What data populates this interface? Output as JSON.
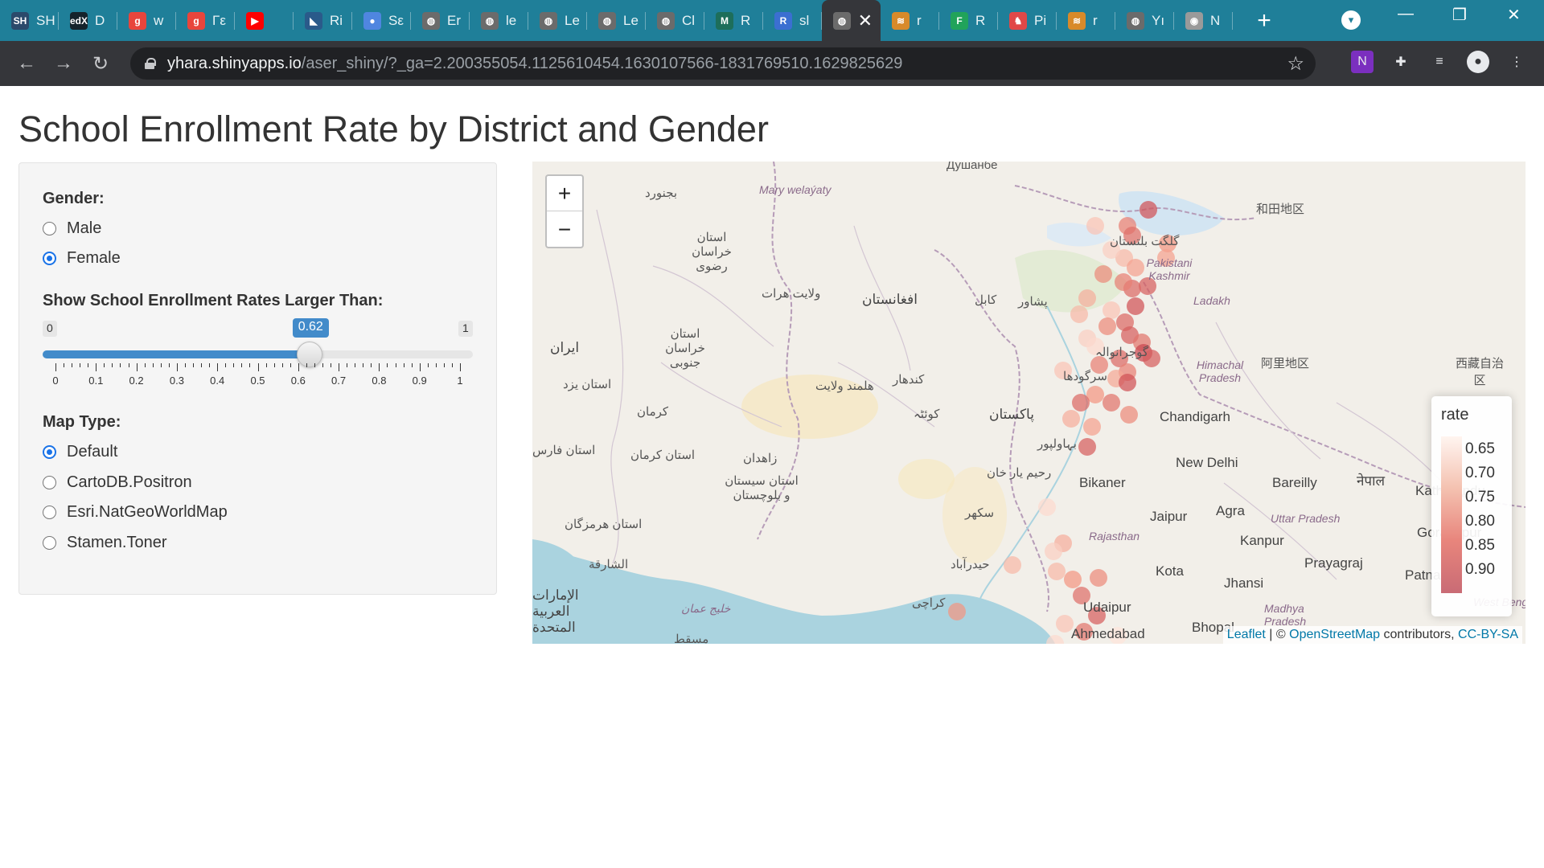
{
  "browser": {
    "tabs": [
      {
        "label": "SH",
        "icon": "shinyapps-icon",
        "color": "#2b4a6b"
      },
      {
        "label": "D",
        "icon": "edx-icon",
        "color": "#15232b"
      },
      {
        "label": "w",
        "icon": "google-g-icon",
        "color": "#e8453c"
      },
      {
        "label": "Γε",
        "icon": "google-g-icon",
        "color": "#e8453c"
      },
      {
        "label": "",
        "icon": "youtube-icon",
        "color": "#ff0000"
      },
      {
        "label": "Ri",
        "icon": "rstudio-icon",
        "color": "#2a5a8a"
      },
      {
        "label": "Sε",
        "icon": "bubble-icon",
        "color": "#4f86e0"
      },
      {
        "label": "Er",
        "icon": "globe-icon",
        "color": "#6b6b6b"
      },
      {
        "label": "le",
        "icon": "globe-icon",
        "color": "#6b6b6b"
      },
      {
        "label": "Le",
        "icon": "globe-icon",
        "color": "#6b6b6b"
      },
      {
        "label": "Le",
        "icon": "globe-icon",
        "color": "#6b6b6b"
      },
      {
        "label": "Cl",
        "icon": "globe-icon",
        "color": "#6b6b6b"
      },
      {
        "label": "R",
        "icon": "m-icon",
        "color": "#1d6e5a"
      },
      {
        "label": "sl",
        "icon": "r-icon",
        "color": "#3b6fd1"
      },
      {
        "label": "",
        "icon": "globe-icon",
        "color": "#6b6b6b"
      },
      {
        "label": "r",
        "icon": "stack-icon",
        "color": "#d88a2a"
      },
      {
        "label": "R",
        "icon": "f-icon",
        "color": "#21a35a"
      },
      {
        "label": "Pi",
        "icon": "unicorn-icon",
        "color": "#e04848"
      },
      {
        "label": "r",
        "icon": "stack-icon",
        "color": "#d88a2a"
      },
      {
        "label": "Yı",
        "icon": "globe-icon",
        "color": "#6b6b6b"
      },
      {
        "label": "N",
        "icon": "chrome-icon",
        "color": "#9a9a9a"
      }
    ],
    "new_tab_label": "+",
    "url_host": "yhara.shinyapps.io",
    "url_path": "/aser_shiny/?_ga=2.200355054.1125610454.1630107566-1831769510.1629825629"
  },
  "page": {
    "title": "School Enrollment Rate by District and Gender"
  },
  "controls": {
    "gender_label": "Gender:",
    "gender_options": [
      "Male",
      "Female"
    ],
    "gender_selected": "Female",
    "slider_label": "Show School Enrollment Rates Larger Than:",
    "slider_min": "0",
    "slider_max": "1",
    "slider_value": "0.62",
    "slider_value_num": 0.62,
    "slider_ticks": [
      "0",
      "0.1",
      "0.2",
      "0.3",
      "0.4",
      "0.5",
      "0.6",
      "0.7",
      "0.8",
      "0.9",
      "1"
    ],
    "maptype_label": "Map Type:",
    "maptype_options": [
      "Default",
      "CartoDB.Positron",
      "Esri.NatGeoWorldMap",
      "Stamen.Toner"
    ],
    "maptype_selected": "Default"
  },
  "map": {
    "zoom_in": "+",
    "zoom_out": "−",
    "legend_title": "rate",
    "legend_labels": [
      "0.65",
      "0.70",
      "0.75",
      "0.80",
      "0.85",
      "0.90"
    ],
    "attribution_leaflet": "Leaflet",
    "attribution_sep": " | © ",
    "attribution_osm": "OpenStreetMap",
    "attribution_mid": " contributors, ",
    "attribution_license": "CC-BY-SA",
    "place_labels": {
      "dushanbe": "Душанбе",
      "bojnurd": "بجنورد",
      "mary": "Mary welaýaty",
      "hotan": "和田地区",
      "khorasan_razavi": "استان خراسان رضوی",
      "gilgit": "گلگت بلتستان",
      "pakistani_kashmir": "Pakistani Kashmir",
      "herat": "ولایت هرات",
      "afghanistan": "افغانستان",
      "kabul": "کابل",
      "peshawar": "پشاور",
      "ladakh": "Ladakh",
      "iran": "ایران",
      "south_khorasan": "استان خراسان جنوبی",
      "gujranwala": "گوجرانوالہ",
      "ngari": "阿里地区",
      "xizang": "西藏自治区",
      "yazd": "استان یزد",
      "helmand": "هلمند ولایت",
      "kandahar": "کندهار",
      "sargodha": "سرگودھا",
      "himachal": "Himachal Pradesh",
      "kerman": "کرمان",
      "quetta": "کوئٹہ",
      "pakistan": "پاکستان",
      "chandigarh": "Chandigarh",
      "fars": "استان فارس",
      "kerman_prov": "استان کرمان",
      "zahedan": "زاهدان",
      "bahawalpur": "بہاولپور",
      "new_delhi": "New Delhi",
      "rahim_yar_khan": "رحیم یار خان",
      "bikaner": "Bikaner",
      "bareilly": "Bareilly",
      "nepal": "नेपाल",
      "kathmandu": "Kathmandu",
      "sistan": "استان سیستان و بلوچستان",
      "sukkur": "سکھر",
      "jaipur": "Jaipur",
      "agra": "Agra",
      "uttar_pradesh": "Uttar Pradesh",
      "gorakhpur": "Gorakhpur",
      "hormozgan": "استان هرمزگان",
      "rajasthan": "Rajasthan",
      "kanpur": "Kanpur",
      "sharjah": "الشارقة",
      "hyderabad": "حیدرآباد",
      "kota": "Kota",
      "prayagraj": "Prayagraj",
      "patna": "Patna",
      "uae": "الإمارات العربية المتحدة",
      "jhansi": "Jhansi",
      "karachi": "کراچی",
      "udaipur": "Udaipur",
      "oman_gulf": "خليج عمان",
      "madhya": "Madhya Pradesh",
      "muscat": "مسقط",
      "ahmedabad": "Ahmedabad",
      "bhopal": "Bhopal",
      "west_bengal": "West Beng"
    },
    "markers": [
      {
        "rate": 0.9
      },
      {
        "rate": 0.82
      },
      {
        "rate": 0.85
      },
      {
        "rate": 0.7
      },
      {
        "rate": 0.78
      },
      {
        "rate": 0.76
      },
      {
        "rate": 0.72
      },
      {
        "rate": 0.88
      },
      {
        "rate": 0.8
      },
      {
        "rate": 0.86
      },
      {
        "rate": 0.74
      },
      {
        "rate": 0.9
      },
      {
        "rate": 0.7
      },
      {
        "rate": 0.86
      },
      {
        "rate": 0.88
      },
      {
        "rate": 0.84
      },
      {
        "rate": 0.92
      },
      {
        "rate": 0.68
      },
      {
        "rate": 0.66
      },
      {
        "rate": 0.8
      },
      {
        "rate": 0.88
      },
      {
        "rate": 0.72
      },
      {
        "rate": 0.86
      },
      {
        "rate": 0.82
      },
      {
        "rate": 0.75
      },
      {
        "rate": 0.78
      },
      {
        "rate": 0.84
      },
      {
        "rate": 0.86
      },
      {
        "rate": 0.74
      },
      {
        "rate": 0.9
      },
      {
        "rate": 0.7
      },
      {
        "rate": 0.82
      },
      {
        "rate": 0.76
      },
      {
        "rate": 0.88
      },
      {
        "rate": 0.8
      },
      {
        "rate": 0.66
      },
      {
        "rate": 0.74
      },
      {
        "rate": 0.68
      },
      {
        "rate": 0.72
      },
      {
        "rate": 0.78
      },
      {
        "rate": 0.8
      },
      {
        "rate": 0.85
      },
      {
        "rate": 0.88
      },
      {
        "rate": 0.84
      },
      {
        "rate": 0.7
      },
      {
        "rate": 0.66
      },
      {
        "rate": 0.64
      },
      {
        "rate": 0.72
      },
      {
        "rate": 0.78
      },
      {
        "rate": 0.76
      },
      {
        "rate": 0.82
      },
      {
        "rate": 0.68
      }
    ]
  }
}
